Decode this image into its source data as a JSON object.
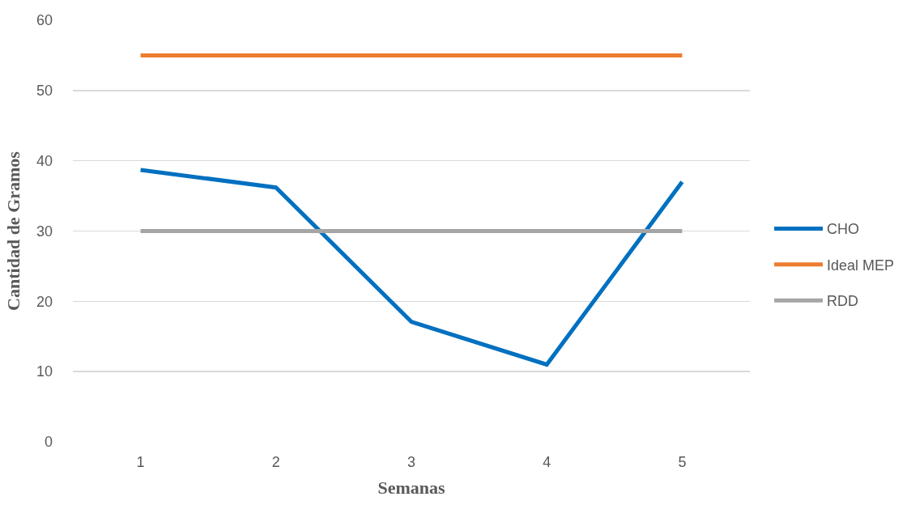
{
  "chart_data": {
    "type": "line",
    "xlabel": "Semanas",
    "ylabel": "Cantidad de Gramos",
    "categories": [
      "1",
      "2",
      "3",
      "4",
      "5"
    ],
    "series": [
      {
        "name": "CHO",
        "color": "#0070c0",
        "values": [
          38.7,
          36.2,
          17.1,
          11.0,
          37.0
        ]
      },
      {
        "name": "Ideal MEP",
        "color": "#ed7d31",
        "values": [
          55,
          55,
          55,
          55,
          55
        ]
      },
      {
        "name": "RDD",
        "color": "#a5a5a5",
        "values": [
          30,
          30,
          30,
          30,
          30
        ]
      }
    ],
    "ylim": [
      0,
      60
    ],
    "yticks": [
      0,
      10,
      20,
      30,
      40,
      50,
      60
    ],
    "grid": "y",
    "legend": "right",
    "marker": "none",
    "line_style": "solid"
  }
}
